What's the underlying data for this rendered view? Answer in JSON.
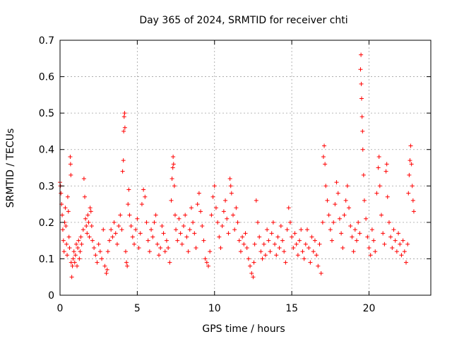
{
  "chart_data": {
    "type": "scatter",
    "title": "Day 365 of 2024, SRMTID for receiver chti",
    "xlabel": "GPS time / hours",
    "ylabel": "SRMTID / TECUs",
    "xlim": [
      0,
      24
    ],
    "ylim": [
      0,
      0.7
    ],
    "xticks": [
      0,
      5,
      10,
      15,
      20
    ],
    "xtick_labels": [
      "0",
      "5",
      "10",
      "15",
      "20"
    ],
    "yticks": [
      0,
      0.1,
      0.2,
      0.3,
      0.4,
      0.5,
      0.6,
      0.7
    ],
    "ytick_labels": [
      "0",
      "0.1",
      "0.2",
      "0.3",
      "0.4",
      "0.5",
      "0.6",
      "0.7"
    ],
    "grid": true,
    "marker": "+",
    "color": "#ff0000",
    "series": [
      {
        "name": "SRMTID",
        "points": [
          [
            0.0,
            0.31
          ],
          [
            0.03,
            0.3
          ],
          [
            0.06,
            0.28
          ],
          [
            0.1,
            0.25
          ],
          [
            0.14,
            0.22
          ],
          [
            0.18,
            0.18
          ],
          [
            0.22,
            0.15
          ],
          [
            0.26,
            0.12
          ],
          [
            0.3,
            0.2
          ],
          [
            0.34,
            0.24
          ],
          [
            0.38,
            0.19
          ],
          [
            0.42,
            0.14
          ],
          [
            0.46,
            0.11
          ],
          [
            0.5,
            0.27
          ],
          [
            0.54,
            0.23
          ],
          [
            0.58,
            0.16
          ],
          [
            0.62,
            0.13
          ],
          [
            0.66,
            0.38
          ],
          [
            0.68,
            0.36
          ],
          [
            0.7,
            0.33
          ],
          [
            0.72,
            0.09
          ],
          [
            0.76,
            0.05
          ],
          [
            0.8,
            0.08
          ],
          [
            0.85,
            0.1
          ],
          [
            0.9,
            0.12
          ],
          [
            0.95,
            0.09
          ],
          [
            1.0,
            0.11
          ],
          [
            1.05,
            0.14
          ],
          [
            1.1,
            0.08
          ],
          [
            1.15,
            0.13
          ],
          [
            1.2,
            0.15
          ],
          [
            1.25,
            0.1
          ],
          [
            1.3,
            0.12
          ],
          [
            1.35,
            0.16
          ],
          [
            1.4,
            0.14
          ],
          [
            1.5,
            0.18
          ],
          [
            1.55,
            0.32
          ],
          [
            1.6,
            0.27
          ],
          [
            1.65,
            0.21
          ],
          [
            1.7,
            0.19
          ],
          [
            1.75,
            0.17
          ],
          [
            1.8,
            0.22
          ],
          [
            1.85,
            0.2
          ],
          [
            1.9,
            0.16
          ],
          [
            1.95,
            0.24
          ],
          [
            2.0,
            0.23
          ],
          [
            2.05,
            0.19
          ],
          [
            2.1,
            0.15
          ],
          [
            2.2,
            0.13
          ],
          [
            2.3,
            0.11
          ],
          [
            2.4,
            0.09
          ],
          [
            2.5,
            0.14
          ],
          [
            2.6,
            0.12
          ],
          [
            2.7,
            0.1
          ],
          [
            2.8,
            0.18
          ],
          [
            2.9,
            0.08
          ],
          [
            3.0,
            0.06
          ],
          [
            3.05,
            0.07
          ],
          [
            3.1,
            0.12
          ],
          [
            3.2,
            0.15
          ],
          [
            3.3,
            0.18
          ],
          [
            3.4,
            0.16
          ],
          [
            3.5,
            0.2
          ],
          [
            3.6,
            0.17
          ],
          [
            3.7,
            0.14
          ],
          [
            3.8,
            0.19
          ],
          [
            3.9,
            0.22
          ],
          [
            4.0,
            0.18
          ],
          [
            4.05,
            0.34
          ],
          [
            4.1,
            0.37
          ],
          [
            4.12,
            0.45
          ],
          [
            4.15,
            0.49
          ],
          [
            4.18,
            0.5
          ],
          [
            4.2,
            0.46
          ],
          [
            4.25,
            0.12
          ],
          [
            4.3,
            0.09
          ],
          [
            4.35,
            0.08
          ],
          [
            4.4,
            0.25
          ],
          [
            4.45,
            0.29
          ],
          [
            4.5,
            0.22
          ],
          [
            4.6,
            0.19
          ],
          [
            4.7,
            0.16
          ],
          [
            4.8,
            0.14
          ],
          [
            4.9,
            0.18
          ],
          [
            5.0,
            0.21
          ],
          [
            5.1,
            0.13
          ],
          [
            5.2,
            0.17
          ],
          [
            5.3,
            0.25
          ],
          [
            5.4,
            0.29
          ],
          [
            5.5,
            0.27
          ],
          [
            5.6,
            0.2
          ],
          [
            5.7,
            0.15
          ],
          [
            5.8,
            0.12
          ],
          [
            5.9,
            0.18
          ],
          [
            6.0,
            0.16
          ],
          [
            6.1,
            0.2
          ],
          [
            6.2,
            0.22
          ],
          [
            6.3,
            0.14
          ],
          [
            6.4,
            0.11
          ],
          [
            6.5,
            0.13
          ],
          [
            6.6,
            0.19
          ],
          [
            6.7,
            0.17
          ],
          [
            6.8,
            0.12
          ],
          [
            6.9,
            0.15
          ],
          [
            7.0,
            0.13
          ],
          [
            7.1,
            0.09
          ],
          [
            7.2,
            0.26
          ],
          [
            7.25,
            0.32
          ],
          [
            7.3,
            0.35
          ],
          [
            7.32,
            0.38
          ],
          [
            7.35,
            0.36
          ],
          [
            7.4,
            0.3
          ],
          [
            7.45,
            0.22
          ],
          [
            7.5,
            0.18
          ],
          [
            7.6,
            0.15
          ],
          [
            7.7,
            0.21
          ],
          [
            7.8,
            0.17
          ],
          [
            7.9,
            0.14
          ],
          [
            8.0,
            0.19
          ],
          [
            8.1,
            0.22
          ],
          [
            8.2,
            0.16
          ],
          [
            8.3,
            0.12
          ],
          [
            8.4,
            0.18
          ],
          [
            8.5,
            0.24
          ],
          [
            8.6,
            0.2
          ],
          [
            8.7,
            0.17
          ],
          [
            8.8,
            0.13
          ],
          [
            8.9,
            0.25
          ],
          [
            9.0,
            0.28
          ],
          [
            9.1,
            0.23
          ],
          [
            9.2,
            0.19
          ],
          [
            9.3,
            0.15
          ],
          [
            9.4,
            0.1
          ],
          [
            9.5,
            0.09
          ],
          [
            9.6,
            0.08
          ],
          [
            9.7,
            0.12
          ],
          [
            9.8,
            0.22
          ],
          [
            9.9,
            0.27
          ],
          [
            10.0,
            0.3
          ],
          [
            10.1,
            0.24
          ],
          [
            10.2,
            0.2
          ],
          [
            10.3,
            0.16
          ],
          [
            10.4,
            0.13
          ],
          [
            10.5,
            0.19
          ],
          [
            10.6,
            0.23
          ],
          [
            10.7,
            0.26
          ],
          [
            10.8,
            0.21
          ],
          [
            10.9,
            0.17
          ],
          [
            11.0,
            0.32
          ],
          [
            11.05,
            0.3
          ],
          [
            11.1,
            0.28
          ],
          [
            11.2,
            0.22
          ],
          [
            11.3,
            0.18
          ],
          [
            11.4,
            0.24
          ],
          [
            11.5,
            0.2
          ],
          [
            11.6,
            0.15
          ],
          [
            11.7,
            0.12
          ],
          [
            11.8,
            0.16
          ],
          [
            11.9,
            0.14
          ],
          [
            12.0,
            0.17
          ],
          [
            12.1,
            0.13
          ],
          [
            12.2,
            0.1
          ],
          [
            12.3,
            0.08
          ],
          [
            12.4,
            0.06
          ],
          [
            12.5,
            0.05
          ],
          [
            12.55,
            0.09
          ],
          [
            12.6,
            0.14
          ],
          [
            12.7,
            0.26
          ],
          [
            12.8,
            0.2
          ],
          [
            12.9,
            0.16
          ],
          [
            13.0,
            0.12
          ],
          [
            13.1,
            0.1
          ],
          [
            13.2,
            0.14
          ],
          [
            13.3,
            0.11
          ],
          [
            13.4,
            0.18
          ],
          [
            13.5,
            0.15
          ],
          [
            13.6,
            0.12
          ],
          [
            13.7,
            0.17
          ],
          [
            13.8,
            0.2
          ],
          [
            13.9,
            0.14
          ],
          [
            14.0,
            0.11
          ],
          [
            14.1,
            0.16
          ],
          [
            14.2,
            0.13
          ],
          [
            14.3,
            0.19
          ],
          [
            14.4,
            0.15
          ],
          [
            14.5,
            0.12
          ],
          [
            14.6,
            0.09
          ],
          [
            14.7,
            0.18
          ],
          [
            14.8,
            0.24
          ],
          [
            14.9,
            0.2
          ],
          [
            15.0,
            0.16
          ],
          [
            15.1,
            0.13
          ],
          [
            15.2,
            0.17
          ],
          [
            15.3,
            0.14
          ],
          [
            15.4,
            0.11
          ],
          [
            15.5,
            0.15
          ],
          [
            15.6,
            0.18
          ],
          [
            15.7,
            0.12
          ],
          [
            15.8,
            0.1
          ],
          [
            15.9,
            0.14
          ],
          [
            16.0,
            0.18
          ],
          [
            16.1,
            0.13
          ],
          [
            16.2,
            0.09
          ],
          [
            16.3,
            0.16
          ],
          [
            16.4,
            0.12
          ],
          [
            16.5,
            0.15
          ],
          [
            16.6,
            0.11
          ],
          [
            16.7,
            0.08
          ],
          [
            16.8,
            0.14
          ],
          [
            16.9,
            0.06
          ],
          [
            17.0,
            0.2
          ],
          [
            17.05,
            0.38
          ],
          [
            17.1,
            0.41
          ],
          [
            17.15,
            0.36
          ],
          [
            17.2,
            0.3
          ],
          [
            17.3,
            0.26
          ],
          [
            17.4,
            0.22
          ],
          [
            17.5,
            0.18
          ],
          [
            17.6,
            0.15
          ],
          [
            17.7,
            0.2
          ],
          [
            17.8,
            0.25
          ],
          [
            17.9,
            0.31
          ],
          [
            18.0,
            0.28
          ],
          [
            18.1,
            0.21
          ],
          [
            18.2,
            0.17
          ],
          [
            18.3,
            0.13
          ],
          [
            18.4,
            0.22
          ],
          [
            18.5,
            0.26
          ],
          [
            18.6,
            0.3
          ],
          [
            18.7,
            0.24
          ],
          [
            18.8,
            0.19
          ],
          [
            18.9,
            0.16
          ],
          [
            19.0,
            0.12
          ],
          [
            19.1,
            0.18
          ],
          [
            19.2,
            0.15
          ],
          [
            19.3,
            0.2
          ],
          [
            19.4,
            0.17
          ],
          [
            19.45,
            0.62
          ],
          [
            19.48,
            0.66
          ],
          [
            19.5,
            0.58
          ],
          [
            19.52,
            0.54
          ],
          [
            19.55,
            0.49
          ],
          [
            19.58,
            0.45
          ],
          [
            19.6,
            0.4
          ],
          [
            19.65,
            0.33
          ],
          [
            19.7,
            0.26
          ],
          [
            19.8,
            0.21
          ],
          [
            19.9,
            0.16
          ],
          [
            20.0,
            0.13
          ],
          [
            20.1,
            0.11
          ],
          [
            20.2,
            0.18
          ],
          [
            20.3,
            0.15
          ],
          [
            20.4,
            0.12
          ],
          [
            20.5,
            0.28
          ],
          [
            20.6,
            0.35
          ],
          [
            20.65,
            0.38
          ],
          [
            20.7,
            0.3
          ],
          [
            20.8,
            0.22
          ],
          [
            20.9,
            0.17
          ],
          [
            21.0,
            0.14
          ],
          [
            21.1,
            0.34
          ],
          [
            21.15,
            0.36
          ],
          [
            21.2,
            0.27
          ],
          [
            21.3,
            0.2
          ],
          [
            21.4,
            0.16
          ],
          [
            21.5,
            0.13
          ],
          [
            21.6,
            0.18
          ],
          [
            21.7,
            0.15
          ],
          [
            21.8,
            0.12
          ],
          [
            21.9,
            0.17
          ],
          [
            22.0,
            0.14
          ],
          [
            22.1,
            0.11
          ],
          [
            22.2,
            0.15
          ],
          [
            22.3,
            0.12
          ],
          [
            22.4,
            0.09
          ],
          [
            22.5,
            0.14
          ],
          [
            22.55,
            0.28
          ],
          [
            22.6,
            0.33
          ],
          [
            22.65,
            0.37
          ],
          [
            22.7,
            0.41
          ],
          [
            22.75,
            0.36
          ],
          [
            22.8,
            0.3
          ],
          [
            22.85,
            0.26
          ],
          [
            22.9,
            0.23
          ]
        ]
      }
    ]
  }
}
